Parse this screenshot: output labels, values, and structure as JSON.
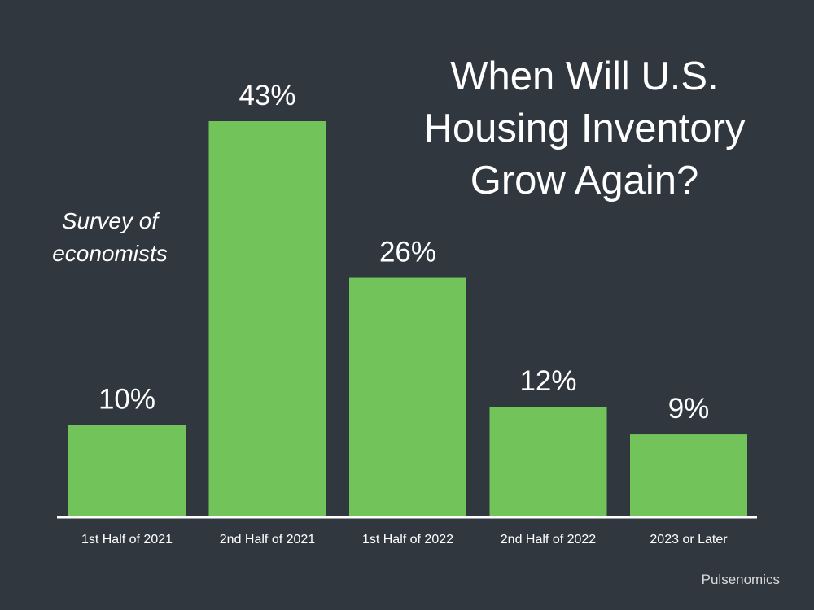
{
  "header": {
    "title_lines": [
      "When Will U.S.",
      "Housing Inventory",
      "Grow Again?"
    ]
  },
  "annotation": {
    "subtitle_lines": [
      "Survey of",
      "economists"
    ]
  },
  "footer": {
    "source": "Pulsenomics"
  },
  "colors": {
    "background": "#31373f",
    "bar": "#72c35a",
    "text": "#ffffff",
    "axis": "#ffffff"
  },
  "chart_data": {
    "type": "bar",
    "title": "When Will U.S. Housing Inventory Grow Again?",
    "subtitle": "Survey of economists",
    "categories": [
      "1st Half of 2021",
      "2nd Half of 2021",
      "1st Half of 2022",
      "2nd Half of 2022",
      "2023 or Later"
    ],
    "values": [
      10,
      43,
      26,
      12,
      9
    ],
    "value_labels": [
      "10%",
      "43%",
      "26%",
      "12%",
      "9%"
    ],
    "unit": "%",
    "xlabel": "",
    "ylabel": "",
    "ylim": [
      0,
      43
    ],
    "grid": false,
    "legend": "none",
    "source": "Pulsenomics"
  }
}
